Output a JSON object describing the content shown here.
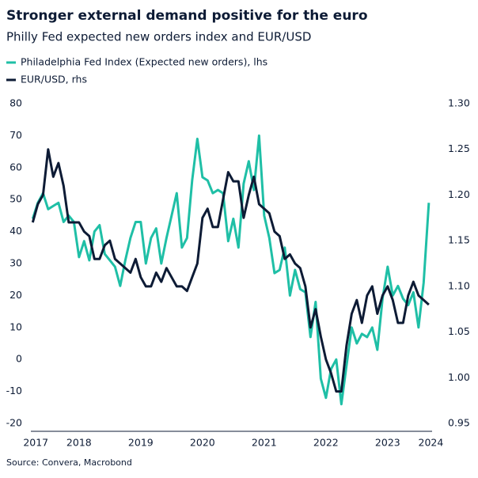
{
  "chart_data": {
    "type": "line",
    "title": "Stronger external demand positive for the euro",
    "subtitle": "Philly Fed expected new orders index and EUR/USD",
    "source": "Source: Convera, Macrobond",
    "x": [
      2017.75,
      2017.833,
      2017.917,
      2018.0,
      2018.083,
      2018.167,
      2018.25,
      2018.333,
      2018.417,
      2018.5,
      2018.583,
      2018.667,
      2018.75,
      2018.833,
      2018.917,
      2019.0,
      2019.083,
      2019.167,
      2019.25,
      2019.333,
      2019.417,
      2019.5,
      2019.583,
      2019.667,
      2019.75,
      2019.833,
      2019.917,
      2020.0,
      2020.083,
      2020.167,
      2020.25,
      2020.333,
      2020.417,
      2020.5,
      2020.583,
      2020.667,
      2020.75,
      2020.833,
      2020.917,
      2021.0,
      2021.083,
      2021.167,
      2021.25,
      2021.333,
      2021.417,
      2021.5,
      2021.583,
      2021.667,
      2021.75,
      2021.833,
      2021.917,
      2022.0,
      2022.083,
      2022.167,
      2022.25,
      2022.333,
      2022.417,
      2022.5,
      2022.583,
      2022.667,
      2022.75,
      2022.833,
      2022.917,
      2023.0,
      2023.083,
      2023.167,
      2023.25,
      2023.333,
      2023.417,
      2023.5,
      2023.583,
      2023.667,
      2023.75,
      2023.833,
      2023.917,
      2024.0,
      2024.083,
      2024.167
    ],
    "series": [
      {
        "name": "Philadelphia Fed Index (Expected new orders), lhs",
        "color": "#1fbfa6",
        "axis": "y",
        "values": [
          44,
          49,
          52,
          47,
          48,
          49,
          43,
          45,
          43,
          32,
          37,
          31,
          40,
          42,
          33,
          31,
          29,
          23,
          31,
          38,
          43,
          43,
          30,
          38,
          41,
          30,
          38,
          45,
          52,
          35,
          38,
          56,
          69,
          57,
          56,
          52,
          53,
          52,
          37,
          44,
          35,
          55,
          62,
          53,
          70,
          45,
          38,
          27,
          28,
          35,
          20,
          28,
          22,
          21,
          7,
          18,
          -6,
          -12,
          -3,
          0,
          -14,
          -2,
          10,
          5,
          8,
          7,
          10,
          3,
          19,
          29,
          20,
          23,
          19,
          17,
          21,
          10,
          24,
          49
        ]
      },
      {
        "name": "EUR/USD, rhs",
        "color": "#0d1b35",
        "axis": "y2",
        "values": [
          1.17,
          1.19,
          1.2,
          1.25,
          1.22,
          1.235,
          1.21,
          1.17,
          1.17,
          1.17,
          1.16,
          1.155,
          1.13,
          1.13,
          1.145,
          1.15,
          1.13,
          1.125,
          1.12,
          1.115,
          1.13,
          1.11,
          1.1,
          1.1,
          1.115,
          1.105,
          1.12,
          1.11,
          1.1,
          1.1,
          1.095,
          1.11,
          1.125,
          1.175,
          1.185,
          1.165,
          1.165,
          1.195,
          1.225,
          1.215,
          1.215,
          1.175,
          1.2,
          1.22,
          1.19,
          1.185,
          1.18,
          1.16,
          1.155,
          1.13,
          1.135,
          1.125,
          1.12,
          1.1,
          1.055,
          1.075,
          1.045,
          1.02,
          1.005,
          0.985,
          0.985,
          1.035,
          1.07,
          1.085,
          1.06,
          1.09,
          1.1,
          1.07,
          1.09,
          1.1,
          1.085,
          1.06,
          1.06,
          1.09,
          1.105,
          1.09,
          1.085,
          1.08
        ]
      }
    ],
    "xlim": [
      2017.72,
      2024.22
    ],
    "xticks": [
      {
        "value": 2017.8,
        "label": "2017"
      },
      {
        "value": 2018.5,
        "label": "2018"
      },
      {
        "value": 2019.5,
        "label": "2019"
      },
      {
        "value": 2020.5,
        "label": "2020"
      },
      {
        "value": 2021.5,
        "label": "2021"
      },
      {
        "value": 2022.5,
        "label": "2022"
      },
      {
        "value": 2023.5,
        "label": "2023"
      },
      {
        "value": 2024.2,
        "label": "2024"
      }
    ],
    "ylim": [
      -20,
      80
    ],
    "yticks": [
      -20,
      -10,
      0,
      10,
      20,
      30,
      40,
      50,
      60,
      70,
      80
    ],
    "y2lim": [
      0.95,
      1.3
    ],
    "y2ticks": [
      0.95,
      {
        "value": 1,
        "label": "1.00"
      },
      1.05,
      {
        "value": 1.1,
        "label": "1.10"
      },
      1.15,
      {
        "value": 1.2,
        "label": "1.20"
      },
      1.25,
      {
        "value": 1.3,
        "label": "1.30"
      }
    ],
    "grid": false,
    "legend": "top-left"
  }
}
